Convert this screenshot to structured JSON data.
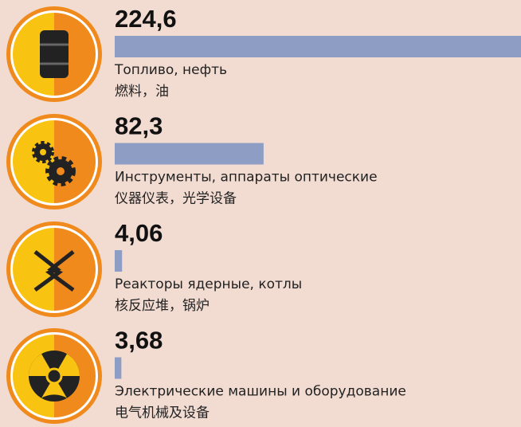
{
  "chart_data": {
    "type": "bar",
    "orientation": "horizontal",
    "categories": [
      "Топливо, нефть",
      "Инструменты, аппараты оптические",
      "Реакторы ядерные, котлы",
      "Электрические машины и оборудование"
    ],
    "categories_zh": [
      "燃料，油",
      "仪器仪表，光学设备",
      "核反应堆，锅炉",
      "电气机械及设备"
    ],
    "values": [
      224.6,
      82.3,
      4.06,
      3.68
    ],
    "value_labels": [
      "224,6",
      "82,3",
      "4,06",
      "3,68"
    ],
    "color": "#8e9dc4"
  }
}
